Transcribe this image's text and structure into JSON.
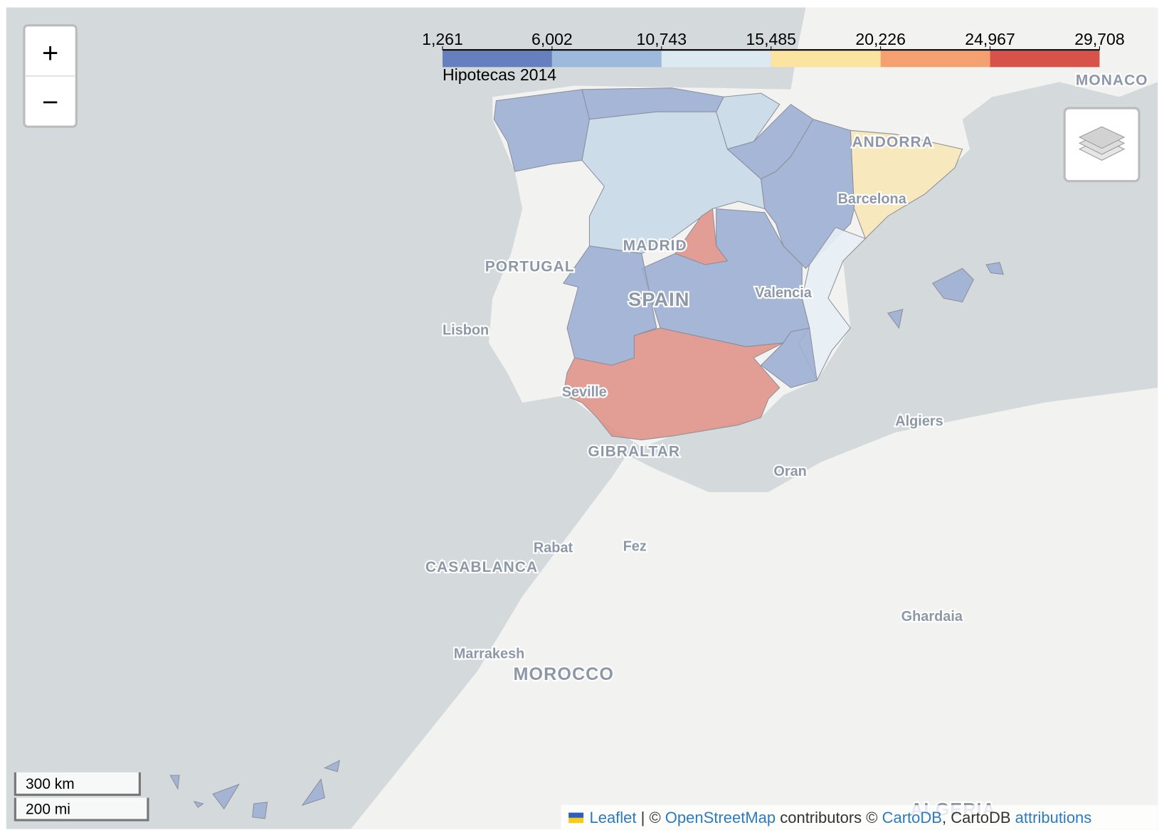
{
  "legend": {
    "title": "Hipotecas 2014",
    "ticks": [
      {
        "value": 1261,
        "label": "1,261"
      },
      {
        "value": 6002,
        "label": "6,002"
      },
      {
        "value": 10743,
        "label": "10,743"
      },
      {
        "value": 15485,
        "label": "15,485"
      },
      {
        "value": 20226,
        "label": "20,226"
      },
      {
        "value": 24967,
        "label": "24,967"
      },
      {
        "value": 29708,
        "label": "29,708"
      }
    ],
    "colors": [
      "#6680bd",
      "#9dbadc",
      "#dce9f1",
      "#fbe3a0",
      "#f4a070",
      "#d7524a"
    ]
  },
  "zoom": {
    "in": "+",
    "out": "−"
  },
  "scale": {
    "metric": "300 km",
    "imperial": "200 mi"
  },
  "labels": {
    "portugal": "PORTUGAL",
    "madrid": "MADRID",
    "spain": "SPAIN",
    "lisbon": "Lisbon",
    "valencia": "Valencia",
    "barcelona": "Barcelona",
    "andorra": "ANDORRA",
    "monaco": "MONACO",
    "seville": "Seville",
    "gibraltar": "GIBRALTAR",
    "algiers": "Algiers",
    "oran": "Oran",
    "rabat": "Rabat",
    "fez": "Fez",
    "casablanca": "CASABLANCA",
    "ghardaia": "Ghardaia",
    "marrakesh": "Marrakesh",
    "morocco": "MOROCCO",
    "algeria": "ALGERIA"
  },
  "attribution": {
    "leaflet": "Leaflet",
    "sep": " | © ",
    "osm": "OpenStreetMap",
    "contributors": " contributors © ",
    "cartodb": "CartoDB",
    "mid": ", CartoDB ",
    "attributions": "attributions"
  }
}
